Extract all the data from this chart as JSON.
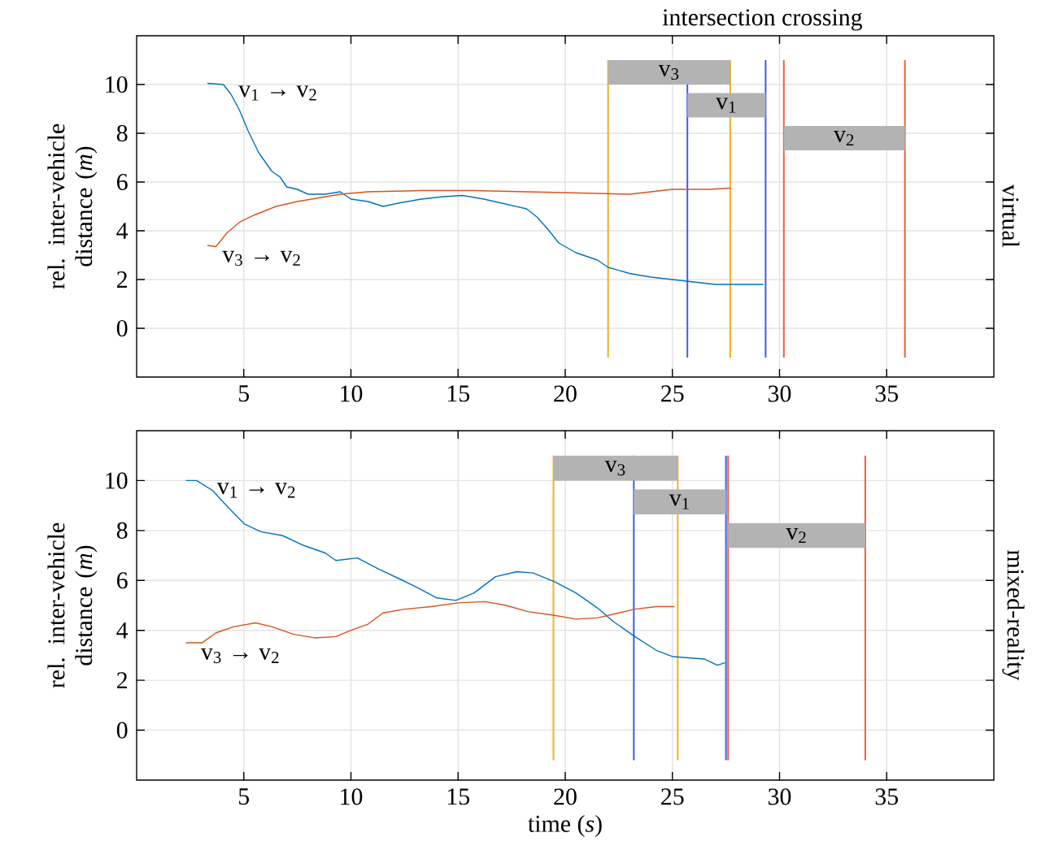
{
  "chart_data": [
    {
      "type": "line",
      "title": "virtual",
      "ylabel": "rel. inter-vehicle distance (*m*)",
      "annotations": [
        "intersection crossing"
      ],
      "xlim": [
        0,
        40
      ],
      "ylim": [
        -2,
        12
      ],
      "xticks": [
        5,
        10,
        15,
        20,
        25,
        30,
        35
      ],
      "yticks": [
        0,
        2,
        4,
        6,
        8,
        10
      ],
      "grid": true,
      "series": [
        {
          "name": "v$_{1}$ → v$_{2}$",
          "color": "#0072bd",
          "x": [
            3.3,
            4.05,
            4.4,
            4.8,
            5.2,
            5.7,
            6.3,
            6.7,
            7.0,
            7.5,
            8.0,
            8.8,
            9.5,
            10.0,
            10.8,
            11.5,
            12.3,
            13.3,
            14.3,
            15.2,
            16.2,
            17.2,
            18.2,
            18.7,
            19.2,
            19.7,
            20.5,
            21.5,
            22.0,
            23.0,
            24.0,
            25.0,
            26.0,
            27.0,
            28.0,
            29.25
          ],
          "values": [
            10.05,
            10.0,
            9.6,
            8.95,
            8.1,
            7.2,
            6.45,
            6.2,
            5.8,
            5.7,
            5.5,
            5.5,
            5.6,
            5.3,
            5.2,
            5.0,
            5.15,
            5.3,
            5.4,
            5.45,
            5.3,
            5.1,
            4.9,
            4.55,
            4.05,
            3.5,
            3.1,
            2.8,
            2.5,
            2.25,
            2.1,
            2.0,
            1.9,
            1.8,
            1.8,
            1.8
          ]
        },
        {
          "name": "v$_{3}$ → v$_{2}$",
          "color": "#d95319",
          "x": [
            3.3,
            3.7,
            4.2,
            4.8,
            5.5,
            6.5,
            7.5,
            8.5,
            9.5,
            10.8,
            13.3,
            15.7,
            18.2,
            20.7,
            23.0,
            25.0,
            26.75,
            27.7
          ],
          "values": [
            3.4,
            3.35,
            3.9,
            4.35,
            4.65,
            5.0,
            5.2,
            5.35,
            5.5,
            5.6,
            5.65,
            5.65,
            5.6,
            5.55,
            5.5,
            5.7,
            5.7,
            5.75
          ]
        }
      ],
      "ref_lines": [
        {
          "axis": "x",
          "value": 22.0,
          "color": "#edb120"
        },
        {
          "axis": "x",
          "value": 27.7,
          "color": "#edb120"
        },
        {
          "axis": "x",
          "value": 25.7,
          "color": "#3b5ee6"
        },
        {
          "axis": "x",
          "value": 29.35,
          "color": "#3b5ee6"
        },
        {
          "axis": "x",
          "value": 30.2,
          "color": "#f0603c"
        },
        {
          "axis": "x",
          "value": 35.85,
          "color": "#f0603c"
        }
      ],
      "bands": [
        {
          "axis": "x",
          "from": 22.0,
          "to": 27.7,
          "label": "v$_{3}$",
          "color": "#b3b3b3"
        },
        {
          "axis": "x",
          "from": 25.7,
          "to": 29.35,
          "label": "v$_{1}$",
          "color": "#b3b3b3"
        },
        {
          "axis": "x",
          "from": 30.2,
          "to": 35.85,
          "label": "v$_{2}$",
          "color": "#b3b3b3"
        }
      ]
    },
    {
      "type": "line",
      "title": "mixed-reality",
      "xlabel": "time (*s*)",
      "ylabel": "rel. inter-vehicle distance (*m*)",
      "xlim": [
        0,
        40
      ],
      "ylim": [
        -2,
        12
      ],
      "xticks": [
        5,
        10,
        15,
        20,
        25,
        30,
        35
      ],
      "yticks": [
        0,
        2,
        4,
        6,
        8,
        10
      ],
      "grid": true,
      "series": [
        {
          "name": "v$_{1}$ → v$_{2}$",
          "color": "#0072bd",
          "x": [
            2.3,
            2.8,
            3.55,
            4.3,
            5.05,
            5.8,
            6.8,
            7.8,
            8.8,
            9.3,
            10.3,
            11.3,
            12.3,
            13.25,
            14.0,
            14.9,
            15.75,
            16.75,
            17.75,
            18.5,
            19.5,
            20.5,
            21.5,
            22.25,
            23.25,
            24.25,
            25.0,
            25.75,
            26.5,
            27.1,
            27.45
          ],
          "values": [
            10.0,
            10.0,
            9.6,
            8.9,
            8.25,
            7.95,
            7.8,
            7.4,
            7.1,
            6.8,
            6.9,
            6.45,
            6.05,
            5.65,
            5.3,
            5.2,
            5.5,
            6.15,
            6.35,
            6.3,
            5.95,
            5.5,
            4.9,
            4.35,
            3.75,
            3.2,
            2.95,
            2.9,
            2.85,
            2.6,
            2.7
          ]
        },
        {
          "name": "v$_{3}$ → v$_{2}$",
          "color": "#d95319",
          "x": [
            2.3,
            3.05,
            3.7,
            4.55,
            5.55,
            6.3,
            7.3,
            8.3,
            9.3,
            10.0,
            10.8,
            11.5,
            12.5,
            13.75,
            15.0,
            16.25,
            17.25,
            18.25,
            19.5,
            20.5,
            21.5,
            22.25,
            23.25,
            24.25,
            25.1
          ],
          "values": [
            3.5,
            3.5,
            3.9,
            4.15,
            4.3,
            4.15,
            3.85,
            3.7,
            3.75,
            4.0,
            4.25,
            4.7,
            4.85,
            4.95,
            5.1,
            5.15,
            5.0,
            4.75,
            4.6,
            4.45,
            4.5,
            4.65,
            4.85,
            4.95,
            4.95
          ]
        }
      ],
      "ref_lines": [
        {
          "axis": "x",
          "value": 19.45,
          "color": "#edb120"
        },
        {
          "axis": "x",
          "value": 25.25,
          "color": "#edb120"
        },
        {
          "axis": "x",
          "value": 23.2,
          "color": "#3b5ee6"
        },
        {
          "axis": "x",
          "value": 27.5,
          "color": "#3b5ee6"
        },
        {
          "axis": "x",
          "value": 27.6,
          "color": "#f0603c"
        },
        {
          "axis": "x",
          "value": 34.0,
          "color": "#f0603c"
        }
      ],
      "bands": [
        {
          "axis": "x",
          "from": 19.45,
          "to": 25.25,
          "label": "v$_{3}$",
          "color": "#b3b3b3"
        },
        {
          "axis": "x",
          "from": 23.2,
          "to": 27.5,
          "label": "v$_{1}$",
          "color": "#b3b3b3"
        },
        {
          "axis": "x",
          "from": 27.6,
          "to": 34.0,
          "label": "v$_{2}$",
          "color": "#b3b3b3"
        }
      ]
    }
  ]
}
